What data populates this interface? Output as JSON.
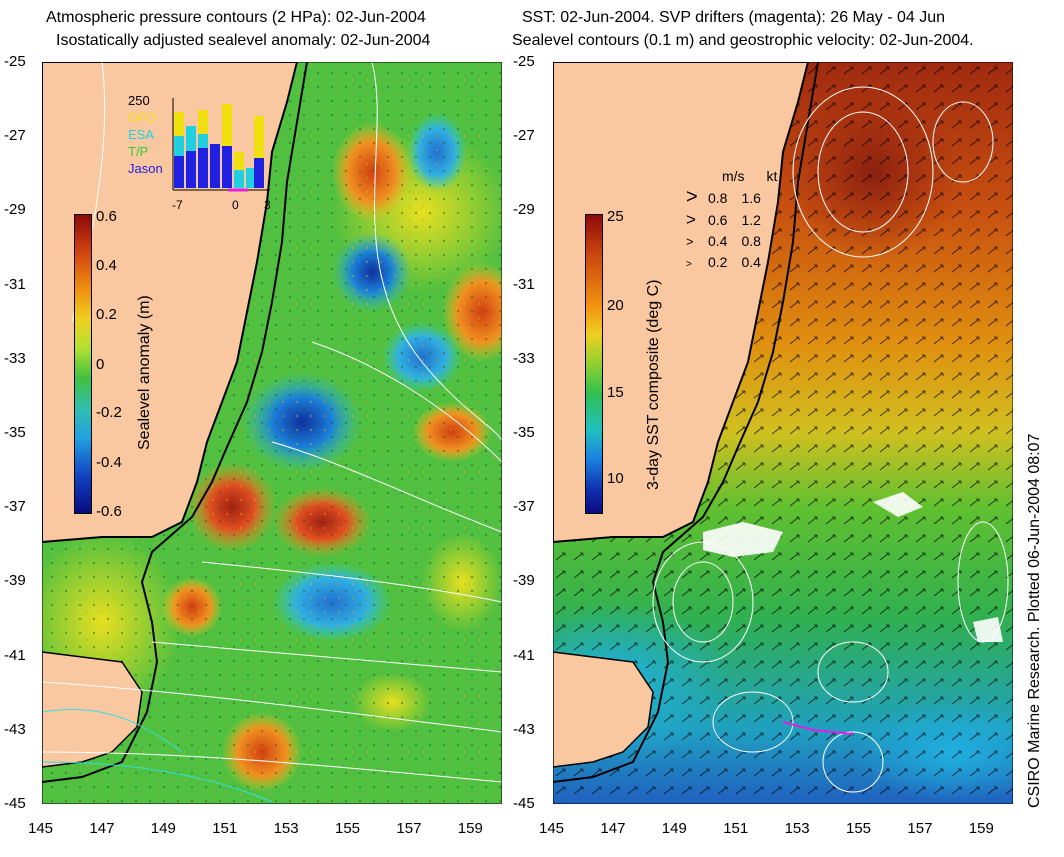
{
  "left_panel": {
    "title_line1": "Atmospheric pressure contours (2 HPa): 02-Jun-2004",
    "title_line2": "Isostatically adjusted sealevel anomaly: 02-Jun-2004",
    "colorbar": {
      "label": "Sealevel anomaly (m)",
      "ticks": [
        "0.6",
        "0.4",
        "0.2",
        "0",
        "-0.2",
        "-0.4",
        "-0.6"
      ]
    },
    "inset": {
      "top_value": "250",
      "legend": [
        {
          "label": "GFO",
          "color": "#f0e010"
        },
        {
          "label": "ESA",
          "color": "#20d0e0"
        },
        {
          "label": "T/P",
          "color": "#30d030"
        },
        {
          "label": "Jason",
          "color": "#2020e0"
        }
      ],
      "x_ticks": [
        "-7",
        "0",
        "3"
      ]
    }
  },
  "right_panel": {
    "title_line1": "SST: 02-Jun-2004. SVP drifters (magenta): 26 May - 04 Jun",
    "title_line2": "Sealevel contours (0.1 m) and geostrophic velocity: 02-Jun-2004.",
    "colorbar": {
      "label": "3-day SST composite (deg C)",
      "ticks": [
        "25",
        "20",
        "15",
        "10"
      ]
    },
    "velocity_legend": {
      "header_ms": "m/s",
      "header_kt": "kt",
      "rows": [
        {
          "ms": "0.8",
          "kt": "1.6"
        },
        {
          "ms": "0.6",
          "kt": "1.2"
        },
        {
          "ms": "0.4",
          "kt": "0.8"
        },
        {
          "ms": "0.2",
          "kt": "0.4"
        }
      ]
    },
    "credit": "CSIRO Marine Research. Plotted 06-Jun-2004 08:07"
  },
  "axes": {
    "lat_ticks": [
      "-25",
      "-27",
      "-29",
      "-31",
      "-33",
      "-35",
      "-37",
      "-39",
      "-41",
      "-43",
      "-45"
    ],
    "lon_ticks": [
      "145",
      "147",
      "149",
      "151",
      "153",
      "155",
      "157",
      "159"
    ]
  },
  "colors": {
    "land": "#f9c8a0",
    "coast": "#000000",
    "contour": "#ffffff"
  }
}
